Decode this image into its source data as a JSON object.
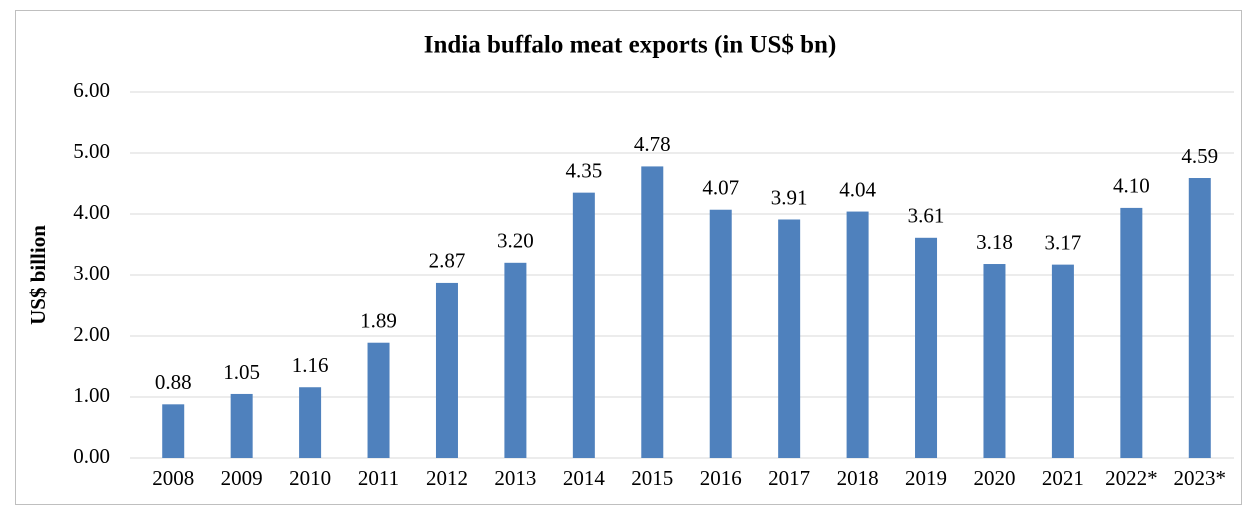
{
  "chart_data": {
    "type": "bar",
    "title": "India buffalo meat exports (in US$ bn)",
    "y_label": "US$ billion",
    "categories": [
      "2008",
      "2009",
      "2010",
      "2011",
      "2012",
      "2013",
      "2014",
      "2015",
      "2016",
      "2017",
      "2018",
      "2019",
      "2020",
      "2021",
      "2022*",
      "2023*"
    ],
    "values": [
      0.88,
      1.05,
      1.16,
      1.89,
      2.87,
      3.2,
      4.35,
      4.78,
      4.07,
      3.91,
      4.04,
      3.61,
      3.18,
      3.17,
      4.1,
      4.59
    ],
    "value_labels": [
      "0.88",
      "1.05",
      "1.16",
      "1.89",
      "2.87",
      "3.20",
      "4.35",
      "4.78",
      "4.07",
      "3.91",
      "4.04",
      "3.61",
      "3.18",
      "3.17",
      "4.10",
      "4.59"
    ],
    "color": "#4f81bd",
    "ylim": [
      0,
      6
    ],
    "yticks": [
      {
        "value": 0,
        "label": "0.00"
      },
      {
        "value": 1,
        "label": "1.00"
      },
      {
        "value": 2,
        "label": "2.00"
      },
      {
        "value": 3,
        "label": "3.00"
      },
      {
        "value": 4,
        "label": "4.00"
      },
      {
        "value": 5,
        "label": "5.00"
      },
      {
        "value": 6,
        "label": "6.00"
      }
    ],
    "grid": true
  }
}
